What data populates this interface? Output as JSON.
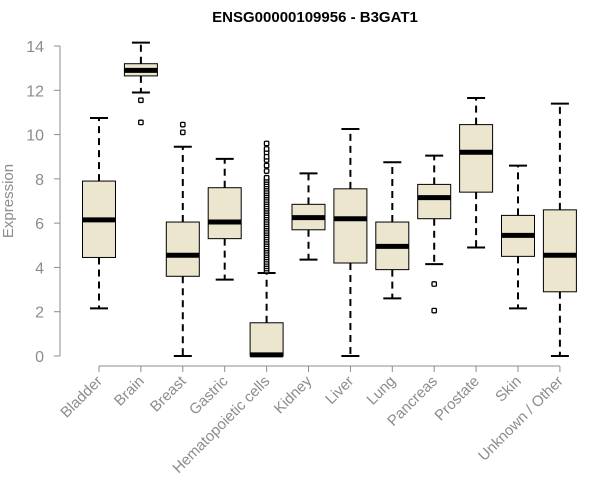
{
  "chart_data": {
    "type": "box",
    "title": "ENSG00000109956 - B3GAT1",
    "xlabel": "",
    "ylabel": "Expression",
    "ylim": [
      0,
      14
    ],
    "yticks": [
      0,
      2,
      4,
      6,
      8,
      10,
      12,
      14
    ],
    "grid": false,
    "colors": {
      "box_fill": "#ede6cf",
      "box_stroke": "#000000",
      "median": "#000000",
      "axis": "#8c8c8c",
      "tick_text": "#8c8c8c"
    },
    "categories": [
      "Bladder",
      "Brain",
      "Breast",
      "Gastric",
      "Hematopoietic cells",
      "Kidney",
      "Liver",
      "Lung",
      "Pancreas",
      "Prostate",
      "Skin",
      "Unknown / Other"
    ],
    "boxes": [
      {
        "name": "Bladder",
        "whisker_low": 2.15,
        "q1": 4.45,
        "median": 6.15,
        "q3": 7.9,
        "whisker_high": 10.75,
        "outliers": []
      },
      {
        "name": "Brain",
        "whisker_low": 11.9,
        "q1": 12.65,
        "median": 12.9,
        "q3": 13.2,
        "whisker_high": 14.15,
        "outliers": [
          11.55,
          10.55
        ]
      },
      {
        "name": "Breast",
        "whisker_low": 0.0,
        "q1": 3.6,
        "median": 4.55,
        "q3": 6.05,
        "whisker_high": 9.45,
        "outliers": [
          10.1,
          10.45
        ]
      },
      {
        "name": "Gastric",
        "whisker_low": 3.45,
        "q1": 5.3,
        "median": 6.05,
        "q3": 7.6,
        "whisker_high": 8.9,
        "outliers": []
      },
      {
        "name": "Hematopoietic cells",
        "whisker_low": 0.0,
        "q1": 0.0,
        "median": 0.05,
        "q3": 1.5,
        "whisker_high": 3.75,
        "outliers": [
          3.85,
          3.95,
          4.05,
          4.15,
          4.25,
          4.35,
          4.45,
          4.55,
          4.65,
          4.75,
          4.85,
          4.95,
          5.05,
          5.15,
          5.25,
          5.35,
          5.45,
          5.55,
          5.65,
          5.75,
          5.85,
          5.95,
          6.05,
          6.15,
          6.25,
          6.35,
          6.45,
          6.55,
          6.65,
          6.75,
          6.85,
          6.95,
          7.05,
          7.15,
          7.25,
          7.35,
          7.45,
          7.55,
          7.65,
          7.75,
          7.85,
          7.95,
          8.05,
          8.35,
          8.6,
          8.85,
          9.0,
          9.2,
          9.35,
          9.6
        ]
      },
      {
        "name": "Kidney",
        "whisker_low": 4.35,
        "q1": 5.7,
        "median": 6.25,
        "q3": 6.85,
        "whisker_high": 8.25,
        "outliers": []
      },
      {
        "name": "Liver",
        "whisker_low": 0.0,
        "q1": 4.2,
        "median": 6.2,
        "q3": 7.55,
        "whisker_high": 10.25,
        "outliers": []
      },
      {
        "name": "Lung",
        "whisker_low": 2.6,
        "q1": 3.9,
        "median": 4.95,
        "q3": 6.05,
        "whisker_high": 8.75,
        "outliers": []
      },
      {
        "name": "Pancreas",
        "whisker_low": 4.15,
        "q1": 6.2,
        "median": 7.15,
        "q3": 7.75,
        "whisker_high": 9.05,
        "outliers": [
          3.25,
          2.05
        ]
      },
      {
        "name": "Prostate",
        "whisker_low": 4.9,
        "q1": 7.4,
        "median": 9.2,
        "q3": 10.45,
        "whisker_high": 11.65,
        "outliers": []
      },
      {
        "name": "Skin",
        "whisker_low": 2.15,
        "q1": 4.5,
        "median": 5.45,
        "q3": 6.35,
        "whisker_high": 8.6,
        "outliers": []
      },
      {
        "name": "Unknown / Other",
        "whisker_low": 0.0,
        "q1": 2.9,
        "median": 4.55,
        "q3": 6.6,
        "whisker_high": 11.4,
        "outliers": []
      }
    ]
  }
}
